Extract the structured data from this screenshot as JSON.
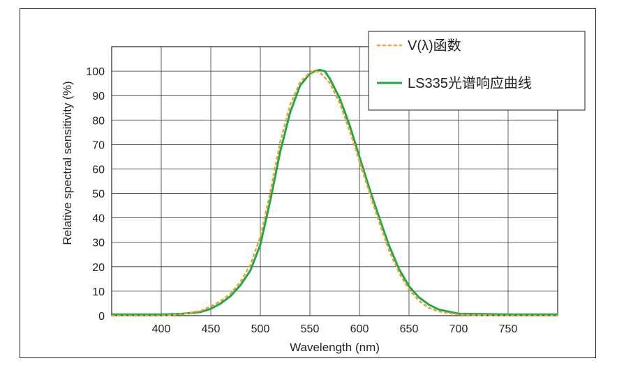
{
  "chart_data": {
    "type": "line",
    "xlabel": "Wavelength (nm)",
    "ylabel": "Relative spectral sensitivity (%)",
    "xlim": [
      350,
      800
    ],
    "ylim": [
      0,
      110
    ],
    "x_ticks": [
      400,
      450,
      500,
      550,
      600,
      650,
      700,
      750
    ],
    "y_ticks": [
      0,
      10,
      20,
      30,
      40,
      50,
      60,
      70,
      80,
      90,
      100
    ],
    "grid": true,
    "legend_position": "top-right",
    "series": [
      {
        "name": "V(λ)函数",
        "color": "#f0a030",
        "style": "dashed",
        "x": [
          350,
          380,
          400,
          420,
          440,
          450,
          460,
          470,
          480,
          490,
          500,
          510,
          520,
          530,
          540,
          550,
          555,
          560,
          570,
          580,
          590,
          600,
          610,
          620,
          630,
          640,
          650,
          660,
          670,
          680,
          700,
          750,
          800
        ],
        "y": [
          0,
          0,
          0,
          0.5,
          2,
          3.8,
          6,
          9,
          13.9,
          20.8,
          32.3,
          50.3,
          71,
          86.2,
          95.4,
          99.5,
          100,
          99.5,
          95.2,
          87,
          75.7,
          63.1,
          50.3,
          38.1,
          26.5,
          17.5,
          10.7,
          6.1,
          3.2,
          1.7,
          0.4,
          0,
          0
        ]
      },
      {
        "name": "LS335光谱响应曲线",
        "color": "#1fa84a",
        "style": "solid",
        "x": [
          350,
          380,
          400,
          420,
          440,
          450,
          460,
          470,
          480,
          490,
          500,
          510,
          520,
          530,
          540,
          550,
          555,
          560,
          565,
          570,
          580,
          590,
          600,
          610,
          620,
          630,
          640,
          650,
          660,
          670,
          680,
          700,
          750,
          800
        ],
        "y": [
          0.5,
          0.5,
          0.5,
          0.7,
          1.5,
          2.8,
          5,
          8,
          12.5,
          18.5,
          29,
          47,
          67,
          83,
          94,
          99,
          100,
          100.5,
          100,
          97,
          89,
          78,
          65,
          52,
          40,
          28.5,
          19,
          12,
          7.5,
          4.5,
          2.5,
          0.8,
          0.5,
          0.5
        ]
      }
    ]
  }
}
